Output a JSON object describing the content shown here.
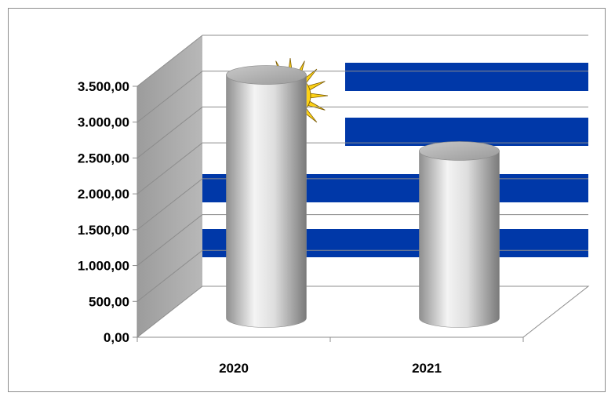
{
  "chart_data": {
    "type": "bar",
    "style": "3d-cylinder",
    "categories": [
      "2020",
      "2021"
    ],
    "values": [
      3390,
      2330
    ],
    "ylim": [
      0,
      3500
    ],
    "yticks": [
      {
        "value": 0,
        "label": "0,00"
      },
      {
        "value": 500,
        "label": "500,00"
      },
      {
        "value": 1000,
        "label": "1.000,00"
      },
      {
        "value": 1500,
        "label": "1.500,00"
      },
      {
        "value": 2000,
        "label": "2.000,00"
      },
      {
        "value": 2500,
        "label": "2.500,00"
      },
      {
        "value": 3000,
        "label": "3.000,00"
      },
      {
        "value": 3500,
        "label": "3.500,00"
      }
    ],
    "grid": true,
    "legend": "none",
    "title": "",
    "xlabel": "",
    "ylabel": "",
    "backdrop": "uruguay-flag",
    "colors": {
      "bar": "#d9d9d9",
      "stripe": "#0038a8",
      "sun": "#fcd116",
      "wall": "#a6a6a6"
    }
  }
}
